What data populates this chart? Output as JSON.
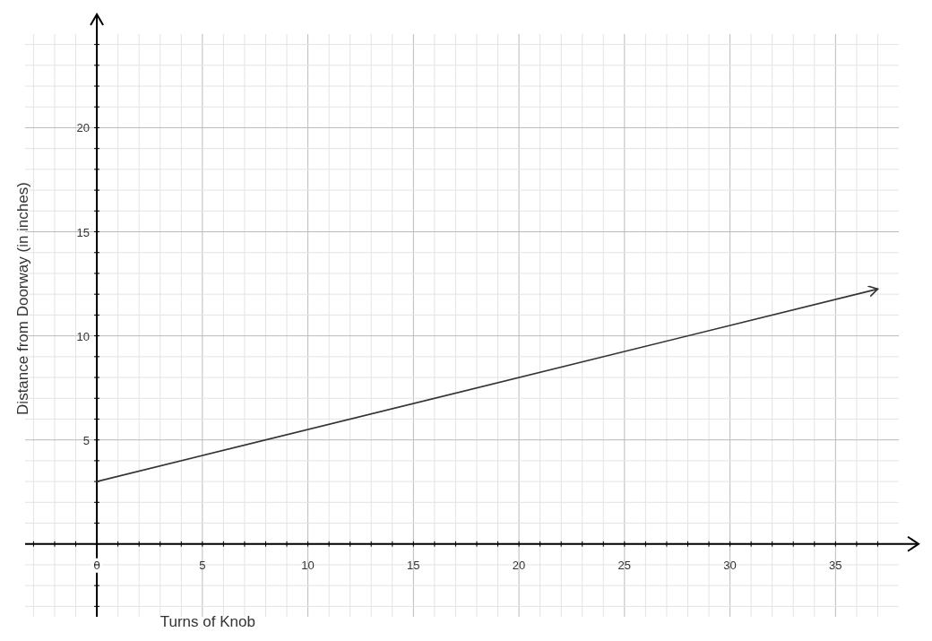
{
  "chart_data": {
    "type": "line",
    "xlabel": "Turns of Knob",
    "ylabel": "Distance from Doorway (in inches)",
    "xlim": [
      -3.4,
      38
    ],
    "ylim": [
      -3.5,
      24.5
    ],
    "xticks": [
      {
        "value": -3,
        "label": null
      },
      {
        "value": -2,
        "label": null
      },
      {
        "value": -1,
        "label": null
      },
      0,
      {
        "value": 1,
        "label": null
      },
      {
        "value": 2,
        "label": null
      },
      {
        "value": 3,
        "label": null
      },
      {
        "value": 4,
        "label": null
      },
      5,
      {
        "value": 6,
        "label": null
      },
      {
        "value": 7,
        "label": null
      },
      {
        "value": 8,
        "label": null
      },
      {
        "value": 9,
        "label": null
      },
      10,
      {
        "value": 11,
        "label": null
      },
      {
        "value": 12,
        "label": null
      },
      {
        "value": 13,
        "label": null
      },
      {
        "value": 14,
        "label": null
      },
      15,
      {
        "value": 16,
        "label": null
      },
      {
        "value": 17,
        "label": null
      },
      {
        "value": 18,
        "label": null
      },
      {
        "value": 19,
        "label": null
      },
      20,
      {
        "value": 21,
        "label": null
      },
      {
        "value": 22,
        "label": null
      },
      {
        "value": 23,
        "label": null
      },
      {
        "value": 24,
        "label": null
      },
      25,
      {
        "value": 26,
        "label": null
      },
      {
        "value": 27,
        "label": null
      },
      {
        "value": 28,
        "label": null
      },
      {
        "value": 29,
        "label": null
      },
      30,
      {
        "value": 31,
        "label": null
      },
      {
        "value": 32,
        "label": null
      },
      {
        "value": 33,
        "label": null
      },
      {
        "value": 34,
        "label": null
      },
      35,
      {
        "value": 36,
        "label": null
      },
      {
        "value": 37,
        "label": null
      }
    ],
    "yticks": [
      {
        "value": -3,
        "label": null
      },
      {
        "value": -2,
        "label": null
      },
      {
        "value": -1,
        "label": null
      },
      {
        "value": 0,
        "label": null
      },
      {
        "value": 1,
        "label": null
      },
      {
        "value": 2,
        "label": null
      },
      {
        "value": 3,
        "label": null
      },
      {
        "value": 4,
        "label": null
      },
      5,
      {
        "value": 6,
        "label": null
      },
      {
        "value": 7,
        "label": null
      },
      {
        "value": 8,
        "label": null
      },
      {
        "value": 9,
        "label": null
      },
      10,
      {
        "value": 11,
        "label": null
      },
      {
        "value": 12,
        "label": null
      },
      {
        "value": 13,
        "label": null
      },
      {
        "value": 14,
        "label": null
      },
      15,
      {
        "value": 16,
        "label": null
      },
      {
        "value": 17,
        "label": null
      },
      {
        "value": 18,
        "label": null
      },
      {
        "value": 19,
        "label": null
      },
      20,
      {
        "value": 21,
        "label": null
      },
      {
        "value": 22,
        "label": null
      },
      {
        "value": 23,
        "label": null
      },
      {
        "value": 24,
        "label": null
      }
    ],
    "grid": true,
    "series": [
      {
        "color": "#333333",
        "x": [
          0,
          37
        ],
        "values": [
          3,
          12.25
        ]
      }
    ]
  }
}
